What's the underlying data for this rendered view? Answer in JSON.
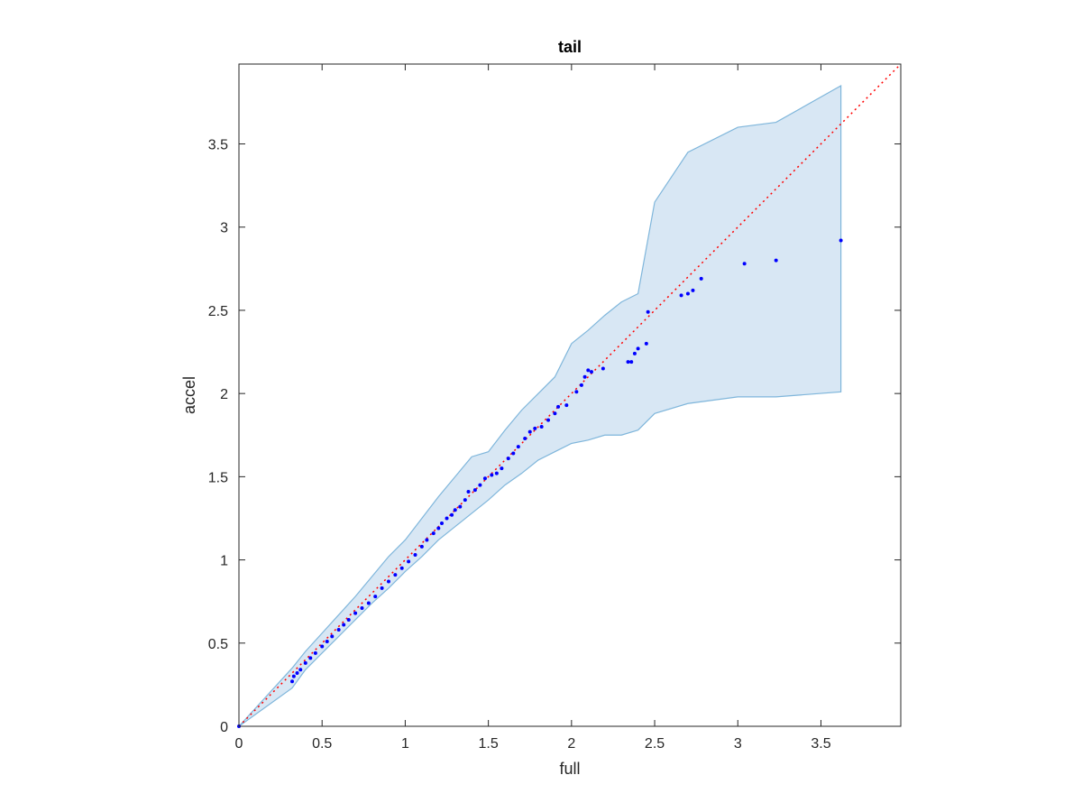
{
  "colors": {
    "band_fill": "#d8e7f4",
    "band_edge": "#7fb6db",
    "points": "#0000ff",
    "reference_line": "#ff0000",
    "axes": "#262626"
  },
  "chart_data": {
    "type": "scatter",
    "title": "tail",
    "xlabel": "full",
    "ylabel": "accel",
    "xlim": [
      0,
      3.98
    ],
    "ylim": [
      0,
      3.98
    ],
    "xticks": [
      0,
      0.5,
      1,
      1.5,
      2,
      2.5,
      3,
      3.5
    ],
    "xtick_labels": [
      "0",
      "0.5",
      "1",
      "1.5",
      "2",
      "2.5",
      "3",
      "3.5"
    ],
    "yticks": [
      0,
      0.5,
      1,
      1.5,
      2,
      2.5,
      3,
      3.5
    ],
    "ytick_labels": [
      "0",
      "0.5",
      "1",
      "1.5",
      "2",
      "2.5",
      "3",
      "3.5"
    ],
    "grid": false,
    "box": true,
    "reference_line": {
      "style": "dotted",
      "x": [
        0,
        3.98
      ],
      "y": [
        0,
        3.98
      ]
    },
    "confidence_band": {
      "x": [
        0,
        0.32,
        0.4,
        0.5,
        0.6,
        0.7,
        0.8,
        0.9,
        1.0,
        1.1,
        1.2,
        1.3,
        1.4,
        1.5,
        1.6,
        1.7,
        1.8,
        1.9,
        2.0,
        2.1,
        2.2,
        2.3,
        2.4,
        2.5,
        2.7,
        3.0,
        3.23,
        3.62
      ],
      "upper": [
        0,
        0.35,
        0.45,
        0.56,
        0.67,
        0.78,
        0.9,
        1.02,
        1.12,
        1.25,
        1.38,
        1.5,
        1.62,
        1.65,
        1.78,
        1.9,
        2.0,
        2.1,
        2.3,
        2.38,
        2.47,
        2.55,
        2.6,
        3.15,
        3.45,
        3.6,
        3.63,
        3.85
      ],
      "lower": [
        0,
        0.23,
        0.34,
        0.44,
        0.54,
        0.64,
        0.74,
        0.83,
        0.93,
        1.02,
        1.12,
        1.2,
        1.28,
        1.36,
        1.45,
        1.52,
        1.6,
        1.65,
        1.7,
        1.72,
        1.75,
        1.75,
        1.78,
        1.88,
        1.94,
        1.98,
        1.98,
        2.01
      ]
    },
    "series": [
      {
        "x": [
          0,
          0.32,
          0.33,
          0.35,
          0.37,
          0.4,
          0.43,
          0.46,
          0.5,
          0.53,
          0.56,
          0.6,
          0.63,
          0.66,
          0.7,
          0.74,
          0.78,
          0.82,
          0.86,
          0.9,
          0.94,
          0.98,
          1.02,
          1.06,
          1.1,
          1.13,
          1.17,
          1.2,
          1.22,
          1.25,
          1.28,
          1.3,
          1.33,
          1.36,
          1.38,
          1.42,
          1.45,
          1.48,
          1.52,
          1.55,
          1.58,
          1.62,
          1.65,
          1.68,
          1.72,
          1.75,
          1.78,
          1.82,
          1.86,
          1.9,
          1.92,
          1.97,
          2.03,
          2.06,
          2.08,
          2.1,
          2.12,
          2.19,
          2.34,
          2.36,
          2.38,
          2.4,
          2.45,
          2.46,
          2.66,
          2.7,
          2.73,
          2.78,
          3.04,
          3.23,
          3.62
        ],
        "y": [
          0,
          0.27,
          0.3,
          0.32,
          0.34,
          0.38,
          0.41,
          0.44,
          0.48,
          0.51,
          0.54,
          0.58,
          0.61,
          0.64,
          0.68,
          0.71,
          0.74,
          0.78,
          0.83,
          0.87,
          0.91,
          0.95,
          0.99,
          1.03,
          1.08,
          1.12,
          1.16,
          1.19,
          1.22,
          1.25,
          1.27,
          1.3,
          1.32,
          1.36,
          1.41,
          1.42,
          1.45,
          1.49,
          1.51,
          1.52,
          1.55,
          1.61,
          1.64,
          1.68,
          1.73,
          1.77,
          1.79,
          1.8,
          1.84,
          1.88,
          1.92,
          1.93,
          2.01,
          2.05,
          2.1,
          2.14,
          2.13,
          2.15,
          2.19,
          2.19,
          2.24,
          2.27,
          2.3,
          2.49,
          2.59,
          2.6,
          2.62,
          2.69,
          2.78,
          2.8,
          2.92
        ]
      }
    ]
  }
}
